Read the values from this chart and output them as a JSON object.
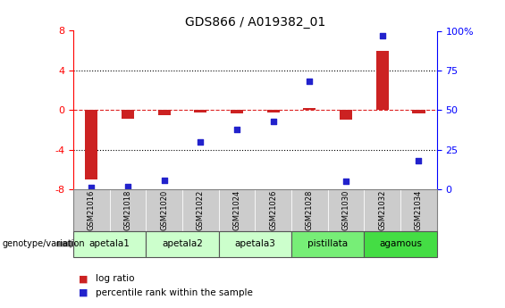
{
  "title": "GDS866 / A019382_01",
  "samples": [
    "GSM21016",
    "GSM21018",
    "GSM21020",
    "GSM21022",
    "GSM21024",
    "GSM21026",
    "GSM21028",
    "GSM21030",
    "GSM21032",
    "GSM21034"
  ],
  "log_ratio": [
    -7.0,
    -0.9,
    -0.5,
    -0.2,
    -0.3,
    -0.2,
    0.2,
    -1.0,
    6.0,
    -0.3
  ],
  "percentile_rank": [
    1,
    2,
    6,
    30,
    38,
    43,
    68,
    5,
    97,
    18
  ],
  "ylim_left": [
    -8,
    8
  ],
  "ylim_right": [
    0,
    100
  ],
  "yticks_left": [
    -8,
    -4,
    0,
    4,
    8
  ],
  "yticks_right": [
    0,
    25,
    50,
    75,
    100
  ],
  "ytick_right_labels": [
    "0",
    "25",
    "50",
    "75",
    "100%"
  ],
  "groups": [
    {
      "label": "apetala1",
      "indices": [
        0,
        1
      ],
      "color": "#ccffcc"
    },
    {
      "label": "apetala2",
      "indices": [
        2,
        3
      ],
      "color": "#ccffcc"
    },
    {
      "label": "apetala3",
      "indices": [
        4,
        5
      ],
      "color": "#ccffcc"
    },
    {
      "label": "pistillata",
      "indices": [
        6,
        7
      ],
      "color": "#77ee77"
    },
    {
      "label": "agamous",
      "indices": [
        8,
        9
      ],
      "color": "#44dd44"
    }
  ],
  "bar_color": "#cc2222",
  "dot_color": "#2222cc",
  "hline_color": "#dd2222",
  "grid_color": "#000000",
  "sample_box_color": "#cccccc",
  "group_border_color": "#555555"
}
